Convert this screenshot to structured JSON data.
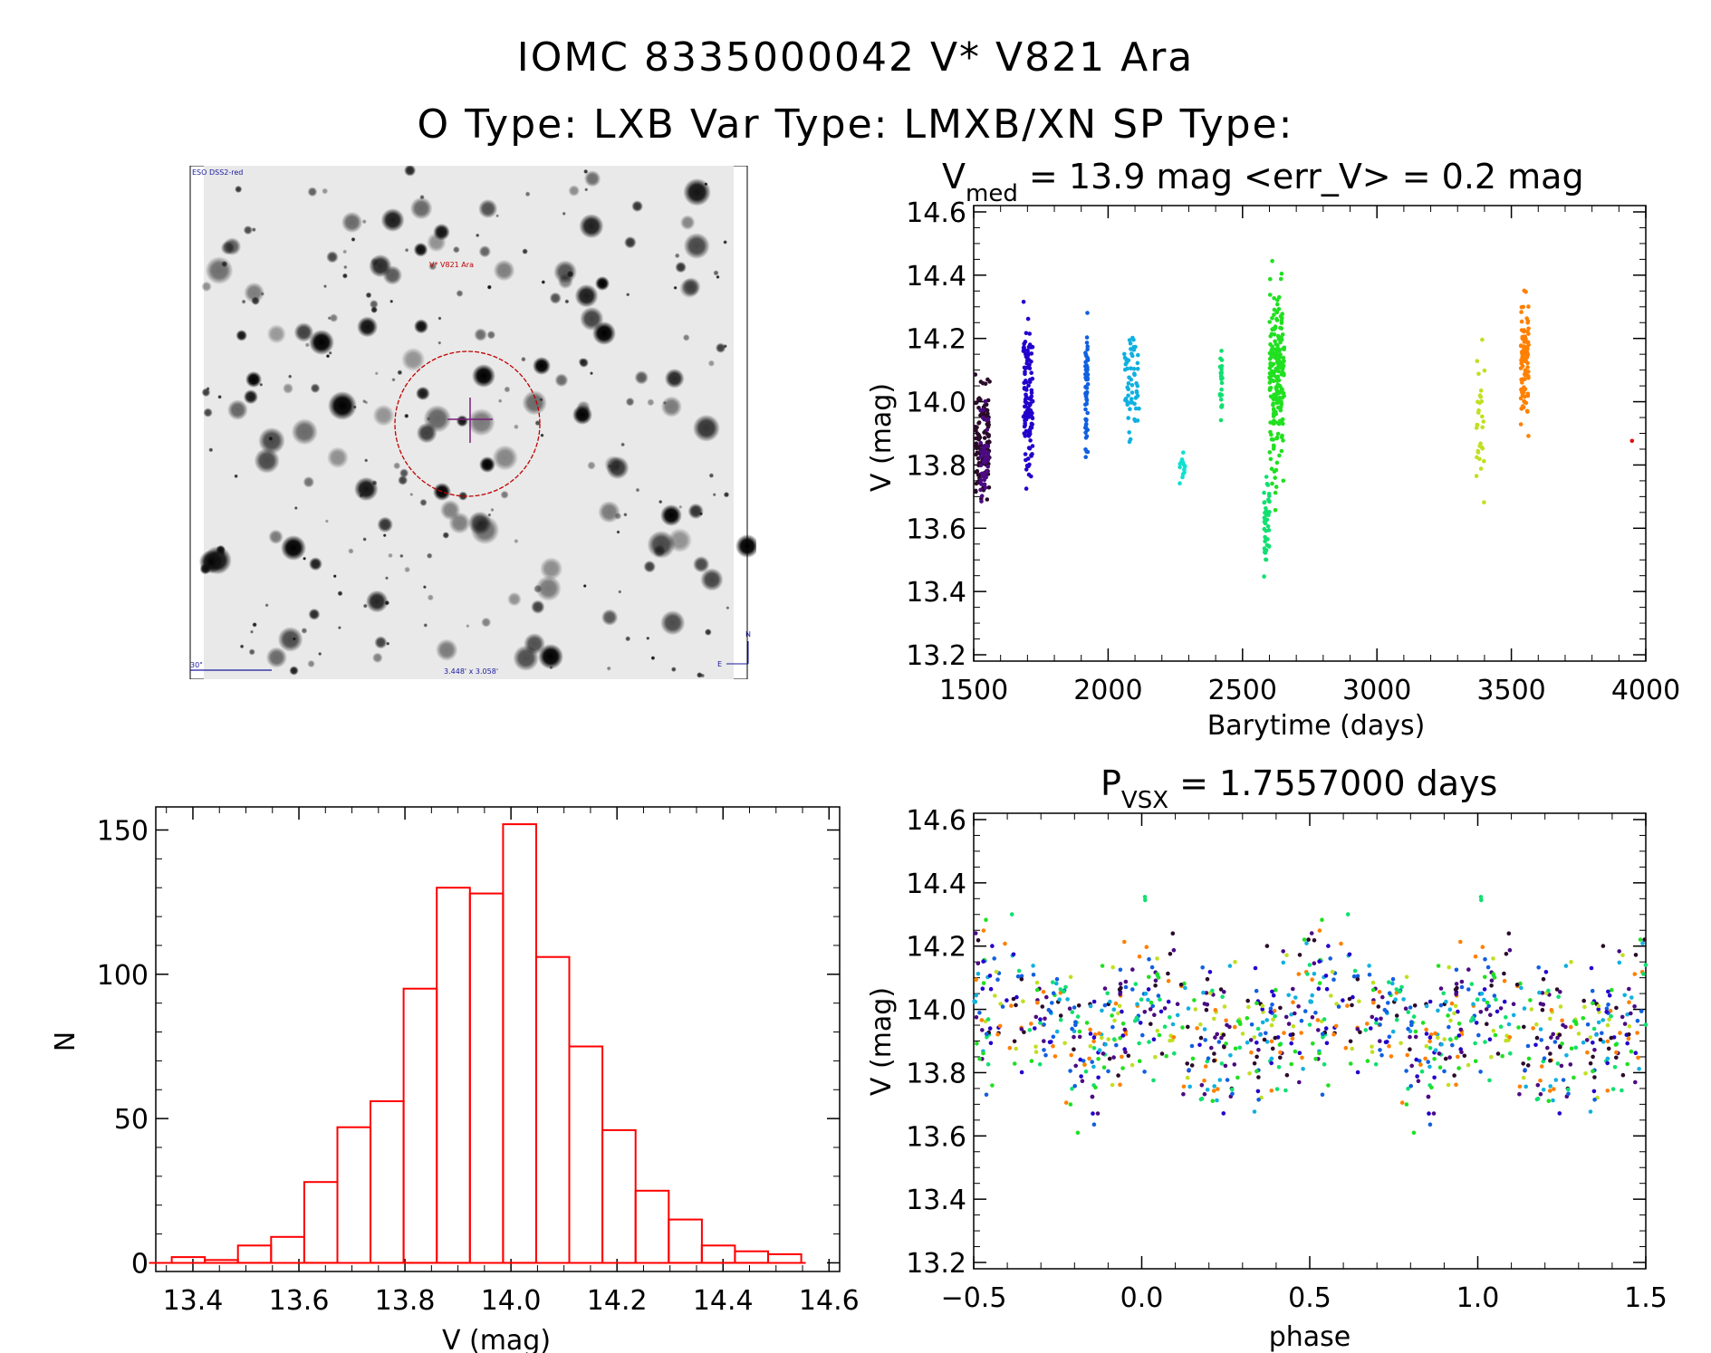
{
  "header": {
    "line1": "IOMC 8335000042   V* V821 Ara",
    "line2": "O Type: LXB  Var Type: LMXB/XN  SP Type:"
  },
  "sky_image": {
    "top_label": "ESO DSS2-red",
    "target_label": "V* V821 Ara",
    "scale_label": "30\"",
    "fov_label": "3.448' x 3.058'",
    "north_label": "N",
    "east_label": "E",
    "circle_color": "#c00000",
    "cross_color": "#7a1f7a"
  },
  "colors": {
    "histogram": "#ff0000",
    "palette": [
      "#2a0b2a",
      "#4b0a82",
      "#2200cc",
      "#1060e0",
      "#10b0e0",
      "#10e0d0",
      "#10e070",
      "#20e020",
      "#c0e020",
      "#ff8000",
      "#ff4000",
      "#e01010"
    ]
  },
  "chart_data": [
    {
      "id": "lightcurve",
      "type": "scatter",
      "title_main": "V",
      "title_sub": "med",
      "title_rest": " = 13.9 mag <err_V> = 0.2 mag",
      "xlabel": "Barytime (days)",
      "ylabel": "V (mag)",
      "xlim": [
        1500,
        4000
      ],
      "ylim": [
        14.62,
        13.18
      ],
      "xticks": [
        "1500",
        "2000",
        "2500",
        "3000",
        "3500",
        "4000"
      ],
      "yticks": [
        "13.2",
        "13.4",
        "13.6",
        "13.8",
        "14.0",
        "14.2",
        "14.4",
        "14.6"
      ],
      "groups": [
        {
          "x_range": [
            1505,
            1560
          ],
          "y_range": [
            13.62,
            14.12
          ],
          "n": 110,
          "y_center": 13.87,
          "color_index": 0
        },
        {
          "x_range": [
            1525,
            1555
          ],
          "y_range": [
            13.6,
            14.05
          ],
          "n": 50,
          "y_center": 13.84,
          "color_index": 1
        },
        {
          "x_range": [
            1685,
            1720
          ],
          "y_range": [
            13.66,
            14.34
          ],
          "n": 120,
          "y_center": 13.95,
          "color_index": 2
        },
        {
          "x_range": [
            1915,
            1925
          ],
          "y_range": [
            13.7,
            14.34
          ],
          "n": 60,
          "y_center": 13.96,
          "color_index": 3
        },
        {
          "x_range": [
            2060,
            2115
          ],
          "y_range": [
            13.82,
            14.3
          ],
          "n": 60,
          "y_center": 14.05,
          "color_index": 4
        },
        {
          "x_range": [
            2265,
            2290
          ],
          "y_range": [
            13.73,
            13.86
          ],
          "n": 15,
          "y_center": 13.8,
          "color_index": 5
        },
        {
          "x_range": [
            2415,
            2425
          ],
          "y_range": [
            13.88,
            14.22
          ],
          "n": 25,
          "y_center": 14.03,
          "color_index": 6
        },
        {
          "x_range": [
            2580,
            2600
          ],
          "y_range": [
            13.37,
            13.85
          ],
          "n": 45,
          "y_center": 13.66,
          "color_index": 6
        },
        {
          "x_range": [
            2600,
            2655
          ],
          "y_range": [
            13.58,
            14.5
          ],
          "n": 200,
          "y_center": 13.95,
          "color_index": 7
        },
        {
          "x_range": [
            3370,
            3400
          ],
          "y_range": [
            13.64,
            14.28
          ],
          "n": 30,
          "y_center": 13.9,
          "color_index": 8
        },
        {
          "x_range": [
            3535,
            3565
          ],
          "y_range": [
            13.82,
            14.44
          ],
          "n": 90,
          "y_center": 14.07,
          "color_index": 9
        },
        {
          "x_range": [
            3945,
            3955
          ],
          "y_range": [
            13.86,
            13.88
          ],
          "n": 1,
          "y_center": 13.87,
          "color_index": 11
        }
      ]
    },
    {
      "id": "histogram",
      "type": "bar",
      "xlabel": "V (mag)",
      "ylabel": "N",
      "xlim": [
        13.33,
        14.62
      ],
      "ylim": [
        -3,
        158
      ],
      "xticks": [
        "13.4",
        "13.6",
        "13.8",
        "14.0",
        "14.2",
        "14.4",
        "14.6"
      ],
      "yticks": [
        "0",
        "50",
        "100",
        "150"
      ],
      "bin_width": 0.0625,
      "bin_starts": [
        13.36,
        13.4225,
        13.485,
        13.5475,
        13.61,
        13.6725,
        13.735,
        13.7975,
        13.86,
        13.9225,
        13.985,
        14.0475,
        14.11,
        14.1725,
        14.235,
        14.2975,
        14.36,
        14.4225,
        14.485
      ],
      "values": [
        2,
        1,
        6,
        9,
        28,
        47,
        56,
        95,
        130,
        128,
        152,
        106,
        75,
        46,
        25,
        15,
        6,
        4,
        3
      ]
    },
    {
      "id": "phased",
      "type": "scatter",
      "title_main": "P",
      "title_sub": "VSX",
      "title_rest": " = 1.7557000 days",
      "xlabel": "phase",
      "ylabel": "V (mag)",
      "xlim": [
        -0.5,
        1.5
      ],
      "ylim": [
        14.62,
        13.18
      ],
      "xticks": [
        "−0.5",
        "0.0",
        "0.5",
        "1.0",
        "1.5"
      ],
      "yticks": [
        "13.2",
        "13.4",
        "13.6",
        "13.8",
        "14.0",
        "14.2",
        "14.4",
        "14.6"
      ],
      "period_days": 1.7557,
      "points_per_cycle": 500,
      "y_model": [
        {
          "phase": 0.0,
          "v": 14.08
        },
        {
          "phase": 0.15,
          "v": 13.92
        },
        {
          "phase": 0.3,
          "v": 13.88
        },
        {
          "phase": 0.45,
          "v": 13.98
        },
        {
          "phase": 0.6,
          "v": 14.02
        },
        {
          "phase": 0.75,
          "v": 13.95
        },
        {
          "phase": 0.85,
          "v": 13.85
        },
        {
          "phase": 1.0,
          "v": 14.08
        }
      ]
    }
  ]
}
